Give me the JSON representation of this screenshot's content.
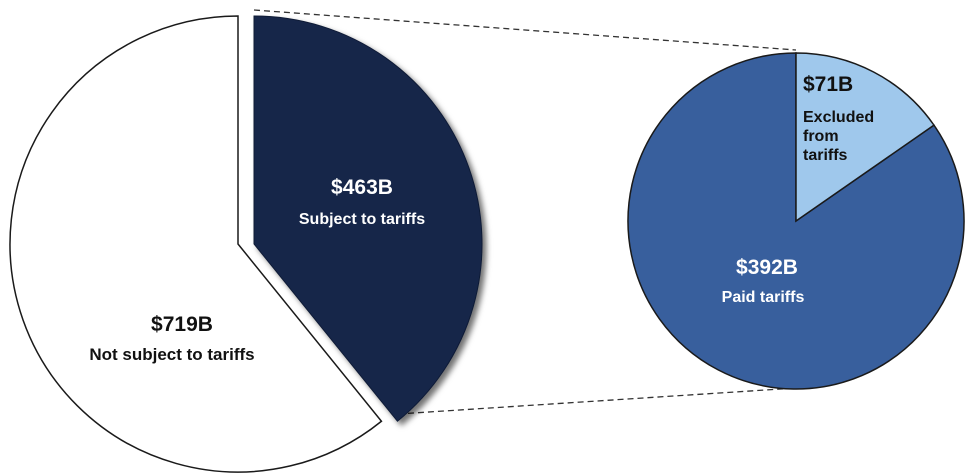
{
  "colors": {
    "not_subject": "#ffffff",
    "subject": "#18264a",
    "paid": "#385f9d",
    "excluded": "#9fc8ec",
    "outline": "#1a1a1a",
    "connector": "#333333"
  },
  "chart_data": [
    {
      "type": "pie",
      "title": "",
      "slices": [
        {
          "key": "not_subject",
          "value": 719,
          "value_label": "$719B",
          "label": "Not subject to tariffs"
        },
        {
          "key": "subject",
          "value": 463,
          "value_label": "$463B",
          "label": "Subject to tariffs",
          "exploded": true
        }
      ]
    },
    {
      "type": "pie",
      "title": "",
      "slices": [
        {
          "key": "excluded",
          "value": 71,
          "value_label": "$71B",
          "label": "Excluded from tariffs"
        },
        {
          "key": "paid",
          "value": 392,
          "value_label": "$392B",
          "label": "Paid tariffs"
        }
      ]
    }
  ]
}
